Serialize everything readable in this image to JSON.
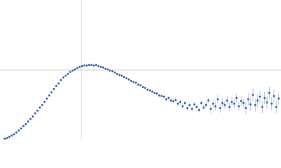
{
  "chart_data": {
    "type": "scatter",
    "color": "#3b65b3",
    "error_color": "#a9bce0",
    "grid_color": "#d0d0d0",
    "xlim": [
      0,
      6
    ],
    "ylim": [
      0,
      2.2
    ],
    "xgrid": [
      1.732
    ],
    "ygrid": [
      1.1
    ],
    "series": [
      {
        "x": [
          0.1,
          0.15,
          0.2,
          0.25,
          0.3,
          0.35,
          0.4,
          0.45,
          0.5,
          0.55,
          0.6,
          0.65,
          0.7,
          0.75,
          0.8,
          0.85,
          0.9,
          0.95,
          1.0,
          1.05,
          1.1,
          1.15,
          1.2,
          1.25,
          1.3,
          1.35,
          1.4,
          1.45,
          1.5,
          1.55,
          1.6,
          1.65,
          1.7,
          1.75,
          1.8,
          1.85,
          1.9,
          1.95,
          2.0,
          2.05,
          2.1,
          2.15,
          2.2,
          2.25,
          2.3,
          2.35,
          2.4,
          2.45,
          2.5,
          2.55,
          2.6,
          2.65,
          2.7,
          2.75,
          2.8,
          2.85,
          2.9,
          2.95,
          3.0,
          3.05,
          3.1,
          3.15,
          3.2,
          3.25,
          3.3,
          3.35,
          3.4,
          3.45,
          3.5,
          3.55,
          3.6,
          3.65,
          3.7,
          3.75,
          3.8,
          3.85,
          3.9,
          3.95,
          4.0,
          4.05,
          4.1,
          4.15,
          4.2,
          4.25,
          4.3,
          4.35,
          4.4,
          4.45,
          4.5,
          4.55,
          4.6,
          4.65,
          4.7,
          4.75,
          4.8,
          4.85,
          4.9,
          4.95,
          5.0,
          5.05,
          5.1,
          5.15,
          5.2,
          5.25,
          5.3,
          5.35,
          5.4,
          5.45,
          5.5,
          5.55,
          5.6,
          5.65,
          5.7,
          5.75,
          5.8,
          5.85,
          5.9,
          5.95
        ],
        "values": [
          0.02,
          0.03,
          0.05,
          0.07,
          0.09,
          0.12,
          0.15,
          0.18,
          0.22,
          0.25,
          0.29,
          0.33,
          0.37,
          0.42,
          0.46,
          0.51,
          0.55,
          0.6,
          0.65,
          0.7,
          0.75,
          0.8,
          0.85,
          0.89,
          0.94,
          0.98,
          1.01,
          1.04,
          1.07,
          1.09,
          1.11,
          1.13,
          1.15,
          1.16,
          1.17,
          1.17,
          1.18,
          1.18,
          1.17,
          1.18,
          1.16,
          1.15,
          1.14,
          1.12,
          1.11,
          1.09,
          1.08,
          1.06,
          1.04,
          1.02,
          1.01,
          0.99,
          0.97,
          0.95,
          0.93,
          0.91,
          0.9,
          0.87,
          0.86,
          0.83,
          0.82,
          0.79,
          0.78,
          0.76,
          0.74,
          0.73,
          0.7,
          0.69,
          0.68,
          0.64,
          0.66,
          0.62,
          0.61,
          0.63,
          0.57,
          0.6,
          0.53,
          0.58,
          0.5,
          0.55,
          0.49,
          0.56,
          0.52,
          0.47,
          0.58,
          0.51,
          0.55,
          0.62,
          0.49,
          0.57,
          0.53,
          0.64,
          0.5,
          0.58,
          0.55,
          0.62,
          0.52,
          0.6,
          0.57,
          0.66,
          0.53,
          0.61,
          0.58,
          0.5,
          0.64,
          0.56,
          0.71,
          0.55,
          0.62,
          0.68,
          0.52,
          0.66,
          0.59,
          0.74,
          0.57,
          0.69,
          0.52,
          0.65
        ],
        "errors": [
          0.01,
          0.01,
          0.01,
          0.01,
          0.01,
          0.01,
          0.01,
          0.01,
          0.01,
          0.01,
          0.01,
          0.01,
          0.01,
          0.01,
          0.01,
          0.01,
          0.01,
          0.01,
          0.01,
          0.01,
          0.01,
          0.01,
          0.01,
          0.01,
          0.01,
          0.01,
          0.01,
          0.01,
          0.01,
          0.01,
          0.01,
          0.01,
          0.01,
          0.01,
          0.01,
          0.01,
          0.01,
          0.01,
          0.01,
          0.01,
          0.01,
          0.01,
          0.01,
          0.01,
          0.01,
          0.01,
          0.01,
          0.01,
          0.02,
          0.02,
          0.02,
          0.02,
          0.02,
          0.02,
          0.02,
          0.02,
          0.02,
          0.02,
          0.02,
          0.02,
          0.02,
          0.02,
          0.02,
          0.02,
          0.02,
          0.02,
          0.02,
          0.02,
          0.04,
          0.04,
          0.04,
          0.04,
          0.04,
          0.04,
          0.04,
          0.04,
          0.04,
          0.04,
          0.04,
          0.04,
          0.04,
          0.04,
          0.04,
          0.04,
          0.04,
          0.04,
          0.04,
          0.04,
          0.07,
          0.07,
          0.07,
          0.07,
          0.07,
          0.07,
          0.07,
          0.07,
          0.07,
          0.07,
          0.07,
          0.07,
          0.07,
          0.07,
          0.07,
          0.1,
          0.1,
          0.1,
          0.1,
          0.1,
          0.1,
          0.1,
          0.1,
          0.1,
          0.1,
          0.1,
          0.1,
          0.1,
          0.1,
          0.1
        ]
      }
    ]
  }
}
